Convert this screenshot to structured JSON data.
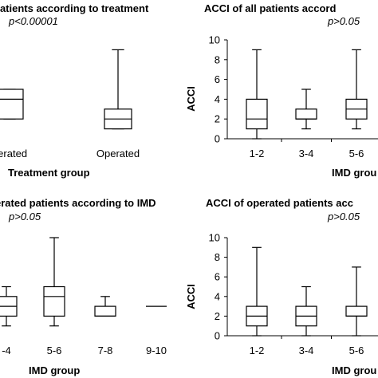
{
  "chart_data": [
    {
      "type": "boxplot",
      "title": "patients according to treatment",
      "p_value": "p<0.00001",
      "xlabel": "Treatment group",
      "ylabel": "",
      "ylim": [
        0,
        10
      ],
      "categories": [
        "perated",
        "Operated"
      ],
      "boxes": [
        {
          "min": 2,
          "q1": 2,
          "median": 4,
          "q3": 5,
          "max": 5
        },
        {
          "min": 1,
          "q1": 1,
          "median": 2,
          "q3": 3,
          "max": 9
        }
      ]
    },
    {
      "type": "boxplot",
      "title": "ACCI of all patients accord",
      "p_value": "p>0.05",
      "xlabel": "IMD grou",
      "ylabel": "ACCI",
      "ylim": [
        0,
        10
      ],
      "yticks": [
        "0",
        "2",
        "4",
        "6",
        "8",
        "10"
      ],
      "categories": [
        "1-2",
        "3-4",
        "5-6"
      ],
      "boxes": [
        {
          "min": 0,
          "q1": 1,
          "median": 2,
          "q3": 4,
          "max": 9
        },
        {
          "min": 1,
          "q1": 2,
          "median": 2,
          "q3": 3,
          "max": 5
        },
        {
          "min": 1,
          "q1": 2,
          "median": 3,
          "q3": 4,
          "max": 9
        }
      ]
    },
    {
      "type": "boxplot",
      "title": "erated patients according to IMD",
      "p_value": "p>0.05",
      "xlabel": "IMD group",
      "ylabel": "",
      "ylim": [
        0,
        10
      ],
      "categories": [
        "-4",
        "5-6",
        "7-8",
        "9-10"
      ],
      "boxes": [
        {
          "min": 1,
          "q1": 2,
          "median": 3,
          "q3": 4,
          "max": 5
        },
        {
          "min": 1,
          "q1": 2,
          "median": 4,
          "q3": 5,
          "max": 10
        },
        {
          "min": 2,
          "q1": 2,
          "median": 2,
          "q3": 3,
          "max": 4
        },
        {
          "min": 3,
          "q1": 3,
          "median": 3,
          "q3": 3,
          "max": 3
        }
      ]
    },
    {
      "type": "boxplot",
      "title": "ACCI of operated patients acc",
      "p_value": "p>0.05",
      "xlabel": "IMD grou",
      "ylabel": "ACCI",
      "ylim": [
        0,
        10
      ],
      "yticks": [
        "0",
        "2",
        "4",
        "6",
        "8",
        "10"
      ],
      "categories": [
        "1-2",
        "3-4",
        "5-6"
      ],
      "boxes": [
        {
          "min": 0,
          "q1": 1,
          "median": 2,
          "q3": 3,
          "max": 9
        },
        {
          "min": 0,
          "q1": 1,
          "median": 2,
          "q3": 3,
          "max": 5
        },
        {
          "min": 0,
          "q1": 2,
          "median": 2,
          "q3": 3,
          "max": 7
        }
      ]
    }
  ]
}
